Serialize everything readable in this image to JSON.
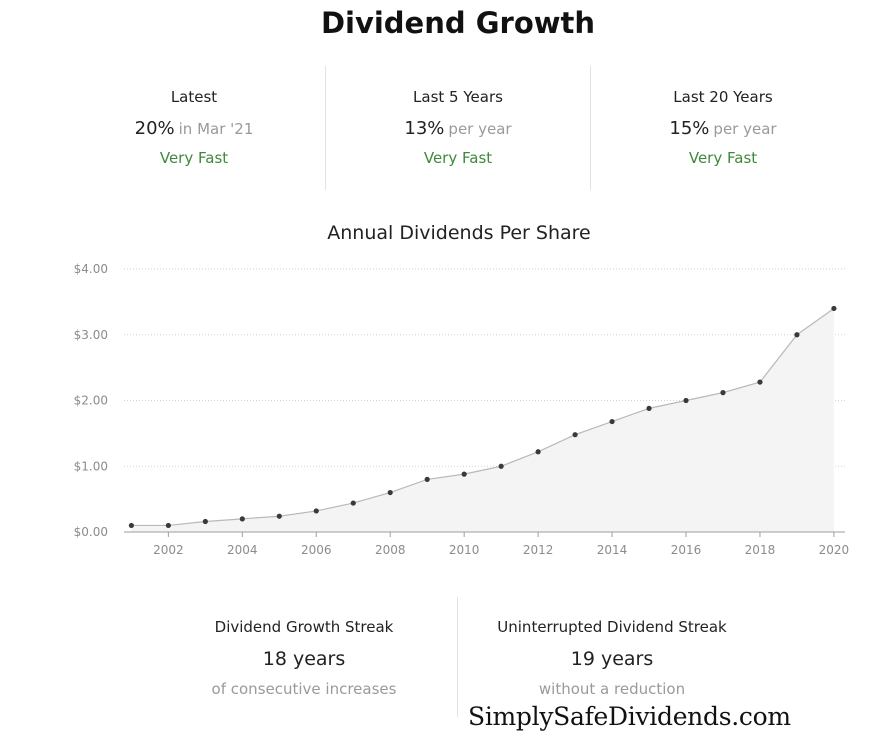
{
  "header": {
    "title": "Dividend Growth"
  },
  "stats": [
    {
      "label": "Latest",
      "value": "20%",
      "suffix": "in Mar '21",
      "rating": "Very Fast"
    },
    {
      "label": "Last 5 Years",
      "value": "13%",
      "suffix": "per year",
      "rating": "Very Fast"
    },
    {
      "label": "Last 20 Years",
      "value": "15%",
      "suffix": "per year",
      "rating": "Very Fast"
    }
  ],
  "chart_data": {
    "type": "area",
    "title": "Annual Dividends Per Share",
    "xlabel": "",
    "ylabel": "",
    "x": [
      2001,
      2002,
      2003,
      2004,
      2005,
      2006,
      2007,
      2008,
      2009,
      2010,
      2011,
      2012,
      2013,
      2014,
      2015,
      2016,
      2017,
      2018,
      2019,
      2020
    ],
    "series": [
      {
        "values": [
          0.1,
          0.1,
          0.16,
          0.2,
          0.24,
          0.32,
          0.44,
          0.6,
          0.8,
          0.88,
          1.0,
          1.22,
          1.48,
          1.68,
          1.88,
          2.0,
          2.12,
          2.28,
          3.0,
          3.4
        ]
      }
    ],
    "ylim": [
      0,
      4
    ],
    "yticks": [
      0,
      1,
      2,
      3,
      4
    ],
    "ytick_labels": [
      "$0.00",
      "$1.00",
      "$2.00",
      "$3.00",
      "$4.00"
    ],
    "xticks": [
      2002,
      2004,
      2006,
      2008,
      2010,
      2012,
      2014,
      2016,
      2018,
      2020
    ],
    "grid": true,
    "colors": {
      "line": "#b9b9b9",
      "fill": "#f4f4f4",
      "point": "#3a3a3a",
      "grid": "#d2d2d2"
    }
  },
  "streaks": [
    {
      "label": "Dividend Growth Streak",
      "value": "18 years",
      "sub": "of consecutive increases"
    },
    {
      "label": "Uninterrupted Dividend Streak",
      "value": "19 years",
      "sub": "without a reduction"
    }
  ],
  "watermark": "SimplySafeDividends.com"
}
